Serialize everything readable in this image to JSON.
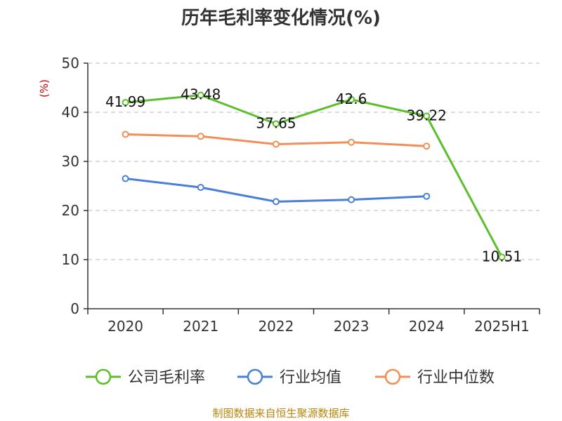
{
  "chart_data": {
    "type": "line",
    "title": "历年毛利率变化情况(%)",
    "ylabel": "(%)",
    "xlabel": "",
    "ylim": [
      0,
      50
    ],
    "yticks": [
      0,
      10,
      20,
      30,
      40,
      50
    ],
    "grid": true,
    "legend_position": "bottom",
    "categories": [
      "2020",
      "2021",
      "2022",
      "2023",
      "2024",
      "2025H1"
    ],
    "series": [
      {
        "name": "公司毛利率",
        "color": "#5cbf2a",
        "values": [
          41.99,
          43.48,
          37.65,
          42.6,
          39.22,
          10.51
        ],
        "data_labels": [
          "41.99",
          "43.48",
          "37.65",
          "42.6",
          "39.22",
          "10.51"
        ]
      },
      {
        "name": "行业均值",
        "color": "#4a7fd8",
        "values": [
          26.5,
          24.7,
          21.8,
          22.2,
          22.9,
          null
        ]
      },
      {
        "name": "行业中位数",
        "color": "#f28e56",
        "values": [
          35.5,
          35.1,
          33.5,
          33.9,
          33.1,
          null
        ]
      }
    ],
    "source": "制图数据来自恒生聚源数据库"
  }
}
